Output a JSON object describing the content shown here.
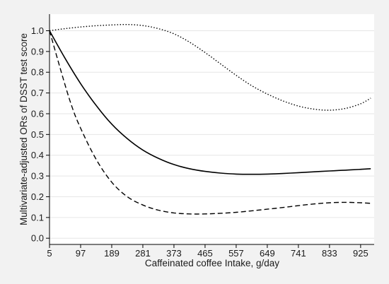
{
  "chart_data": {
    "type": "line",
    "title": "",
    "xlabel": "Caffeinated coffee Intake, g/day",
    "ylabel": "Multivariate-adjusted ORs of DSST test score",
    "xlim": [
      5,
      965
    ],
    "ylim": [
      -0.03,
      1.08
    ],
    "x_ticks": [
      5,
      97,
      189,
      281,
      373,
      465,
      557,
      649,
      741,
      833,
      925
    ],
    "y_ticks": [
      0.0,
      0.1,
      0.2,
      0.3,
      0.4,
      0.5,
      0.6,
      0.7,
      0.8,
      0.9,
      1.0
    ],
    "y_tick_labels": [
      "0.0",
      "0.1",
      "0.2",
      "0.3",
      "0.4",
      "0.5",
      "0.6",
      "0.7",
      "0.8",
      "0.9",
      "1.0"
    ],
    "grid": "horizontal",
    "legend": "none",
    "series": [
      {
        "style": "solid",
        "color": "#000000",
        "x": [
          5,
          50,
          97,
          143,
          189,
          235,
          281,
          327,
          373,
          419,
          465,
          511,
          557,
          603,
          649,
          695,
          741,
          787,
          833,
          879,
          925,
          955
        ],
        "values": [
          1.0,
          0.87,
          0.745,
          0.64,
          0.55,
          0.48,
          0.425,
          0.385,
          0.355,
          0.335,
          0.322,
          0.314,
          0.309,
          0.308,
          0.309,
          0.312,
          0.316,
          0.32,
          0.324,
          0.328,
          0.332,
          0.335
        ]
      },
      {
        "style": "dashed",
        "color": "#000000",
        "x": [
          5,
          40,
          70,
          97,
          143,
          189,
          235,
          281,
          327,
          373,
          419,
          465,
          511,
          557,
          603,
          649,
          695,
          741,
          787,
          833,
          879,
          925,
          955
        ],
        "values": [
          1.0,
          0.8,
          0.64,
          0.53,
          0.38,
          0.27,
          0.2,
          0.16,
          0.135,
          0.122,
          0.117,
          0.117,
          0.12,
          0.125,
          0.132,
          0.14,
          0.148,
          0.157,
          0.165,
          0.171,
          0.173,
          0.171,
          0.168
        ]
      },
      {
        "style": "dotted",
        "color": "#000000",
        "x": [
          5,
          50,
          97,
          143,
          189,
          235,
          281,
          327,
          373,
          419,
          465,
          511,
          557,
          603,
          649,
          695,
          741,
          787,
          833,
          879,
          925,
          955
        ],
        "values": [
          1.0,
          1.01,
          1.018,
          1.024,
          1.028,
          1.03,
          1.025,
          1.01,
          0.985,
          0.945,
          0.895,
          0.84,
          0.785,
          0.735,
          0.695,
          0.662,
          0.637,
          0.622,
          0.617,
          0.625,
          0.648,
          0.675
        ]
      }
    ]
  }
}
